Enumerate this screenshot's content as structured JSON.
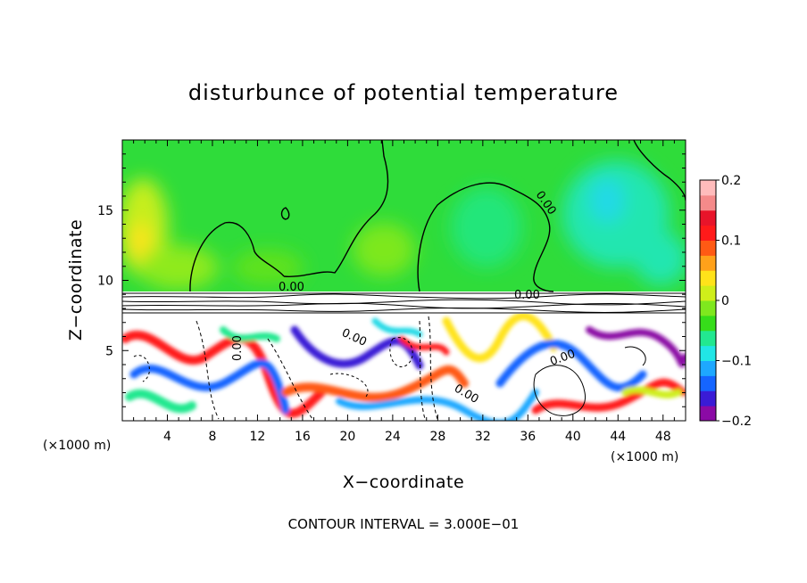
{
  "chart_data": {
    "type": "heatmap",
    "title": "disturbunce of potential temperature",
    "xlabel": "X−coordinate",
    "ylabel": "Z−coordinate",
    "x_unit": "(×1000 m)",
    "z_unit": "(×1000 m)",
    "xlim": [
      0,
      50
    ],
    "ylim": [
      0,
      20
    ],
    "x_ticks": [
      "4",
      "8",
      "12",
      "16",
      "20",
      "24",
      "28",
      "32",
      "36",
      "40",
      "44",
      "48"
    ],
    "y_ticks": [
      "5",
      "10",
      "15"
    ],
    "x_tick_values": [
      4,
      8,
      12,
      16,
      20,
      24,
      28,
      32,
      36,
      40,
      44,
      48
    ],
    "y_tick_values": [
      5,
      10,
      15
    ],
    "colorbar": {
      "min": -0.2,
      "max": 0.2,
      "labels": [
        "0.2",
        "0.1",
        "0",
        "−0.1",
        "−0.2"
      ],
      "label_values": [
        0.2,
        0.1,
        0,
        -0.1,
        -0.2
      ],
      "colors": [
        "#8b0aa5",
        "#3a1bd6",
        "#1565ff",
        "#1ea8ff",
        "#21e6e6",
        "#22e890",
        "#36dd1a",
        "#7fe81e",
        "#cfee1a",
        "#ffe31a",
        "#ffa11a",
        "#ff5a14",
        "#ff1a1a",
        "#e8142a",
        "#f58a8a",
        "#ffbcbc"
      ]
    },
    "contour_labels": [
      "0.00",
      "0.00",
      "0.00",
      "0.00",
      "0.00",
      "0.00",
      "0.00"
    ],
    "annotation": "CONTOUR INTERVAL = 3.000E−01"
  }
}
